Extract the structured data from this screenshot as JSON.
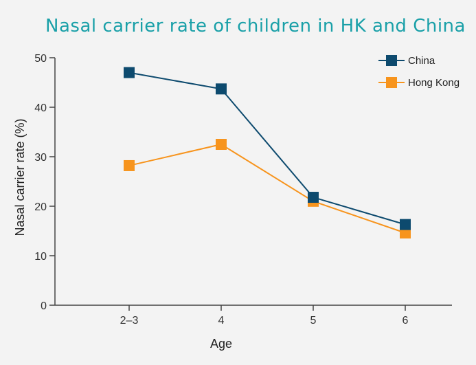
{
  "chart_data": {
    "type": "line",
    "title": "Nasal carrier rate of children in HK and China",
    "xlabel": "Age",
    "ylabel": "Nasal carrier rate (%)",
    "categories": [
      "2–3",
      "4",
      "5",
      "6"
    ],
    "ylim": [
      0,
      50
    ],
    "yticks": [
      "0",
      "10",
      "20",
      "30",
      "40",
      "50"
    ],
    "grid": false,
    "legend_position": "top-right",
    "series": [
      {
        "name": "China",
        "color": "#0d4a6e",
        "marker": "square",
        "values": [
          47,
          43.7,
          21.8,
          16.3
        ]
      },
      {
        "name": "Hong Kong",
        "color": "#f7941d",
        "marker": "square",
        "values": [
          28.2,
          32.5,
          21,
          14.6
        ]
      }
    ]
  }
}
